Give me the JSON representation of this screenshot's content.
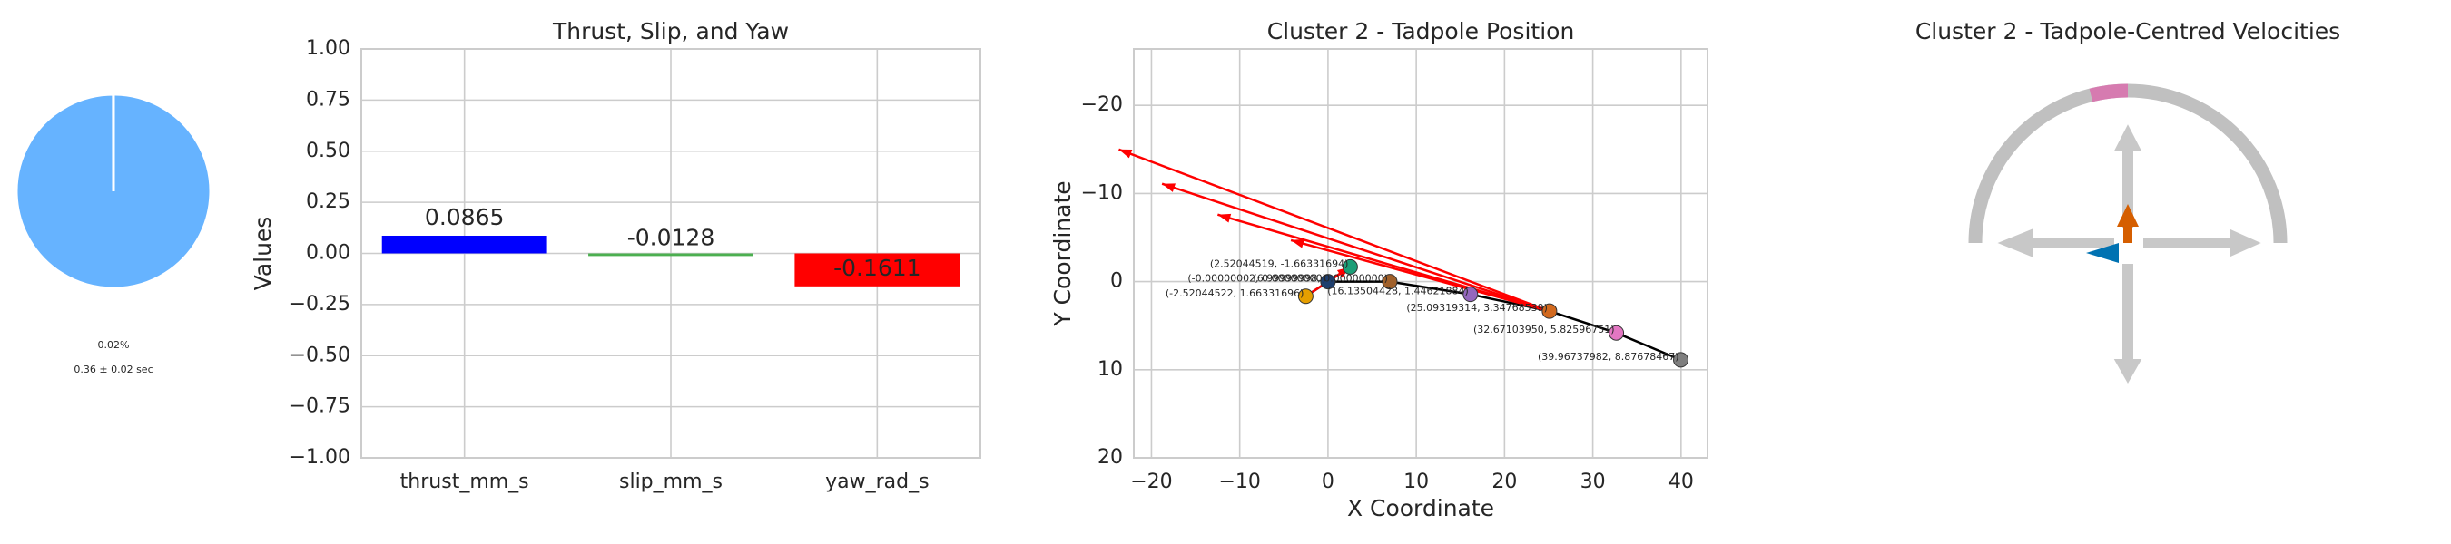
{
  "chart_data": [
    {
      "type": "pie",
      "values": [
        0.02,
        99.98
      ],
      "value_labels": [
        "0.02%",
        null
      ],
      "colors": [
        "#66b3ff",
        "#66b3ff"
      ],
      "annotation": "0.36 ± 0.02 sec"
    },
    {
      "type": "bar",
      "title": "Thrust, Slip, and Yaw",
      "ylabel": "Values",
      "categories": [
        "thrust_mm_s",
        "slip_mm_s",
        "yaw_rad_s"
      ],
      "values": [
        0.0865,
        -0.0128,
        -0.1611
      ],
      "colors": [
        "#0000ff",
        "#4caf50",
        "#ff0000"
      ],
      "ylim": [
        -1,
        1
      ],
      "yticks": [
        {
          "value": -1,
          "label": "−1.00"
        },
        {
          "value": -0.75,
          "label": "−0.75"
        },
        {
          "value": -0.5,
          "label": "−0.50"
        },
        {
          "value": -0.25,
          "label": "−0.25"
        },
        {
          "value": 0,
          "label": "0.00"
        },
        {
          "value": 0.25,
          "label": "0.25"
        },
        {
          "value": 0.5,
          "label": "0.50"
        },
        {
          "value": 0.75,
          "label": "0.75"
        },
        {
          "value": 1,
          "label": "1.00"
        }
      ],
      "grid": true
    },
    {
      "type": "scatter",
      "title": "Cluster 2 - Tadpole Position",
      "xlabel": "X Coordinate",
      "ylabel": "Y Coordinate",
      "xlim": [
        -22,
        43
      ],
      "ylim": [
        -26.4,
        20
      ],
      "y_inverted": true,
      "grid": true,
      "xticks": [
        {
          "value": -20,
          "label": "−20"
        },
        {
          "value": -10,
          "label": "−10"
        },
        0,
        10,
        20,
        30,
        40
      ],
      "yticks": [
        {
          "value": -20,
          "label": "−20"
        },
        {
          "value": -10,
          "label": "−10"
        },
        0,
        10,
        20
      ],
      "x": [
        2.52044519,
        -2.52044522,
        -2e-08,
        6.99999998,
        16.13504428,
        25.09319314,
        32.6710395,
        39.96737982
      ],
      "y": [
        -1.66331694,
        1.66331696,
        0,
        0,
        1.44621884,
        3.34768539,
        5.82596751,
        8.87678467
      ],
      "point_labels": [
        "(2.52044519, -1.66331694)",
        "(-2.52044522, 1.66331696)",
        "(-0.00000002, 0.00000000)",
        "(6.99999998, 0.00000000)",
        "(16.13504428, 1.44621884)",
        "(25.09319314, 3.34768539)",
        "(32.67103950, 5.82596751)",
        "(39.96737982, 8.87678467)"
      ],
      "colors": [
        "#1b9e77",
        "#e69f00",
        "#1f3f6e",
        "#a0602a",
        "#9467bd",
        "#d2691e",
        "#e377c2",
        "#7f7f7f"
      ],
      "line_color": "#000000",
      "arrow_color": "#ff0000",
      "arrows": [
        {
          "x0": 25.09,
          "y0": 3.35,
          "x1": -23.7,
          "y1": -15.0
        },
        {
          "x0": 25.09,
          "y0": 3.35,
          "x1": -18.8,
          "y1": -11.1
        },
        {
          "x0": 25.09,
          "y0": 3.35,
          "x1": -12.5,
          "y1": -7.6
        },
        {
          "x0": 25.09,
          "y0": 3.35,
          "x1": -4.2,
          "y1": -4.7
        },
        {
          "x0": -2.52,
          "y0": 1.66,
          "x1": 2.52,
          "y1": -1.66
        }
      ]
    },
    {
      "type": "diagram",
      "title": "Cluster 2 - Tadpole-Centred Velocities"
    }
  ]
}
